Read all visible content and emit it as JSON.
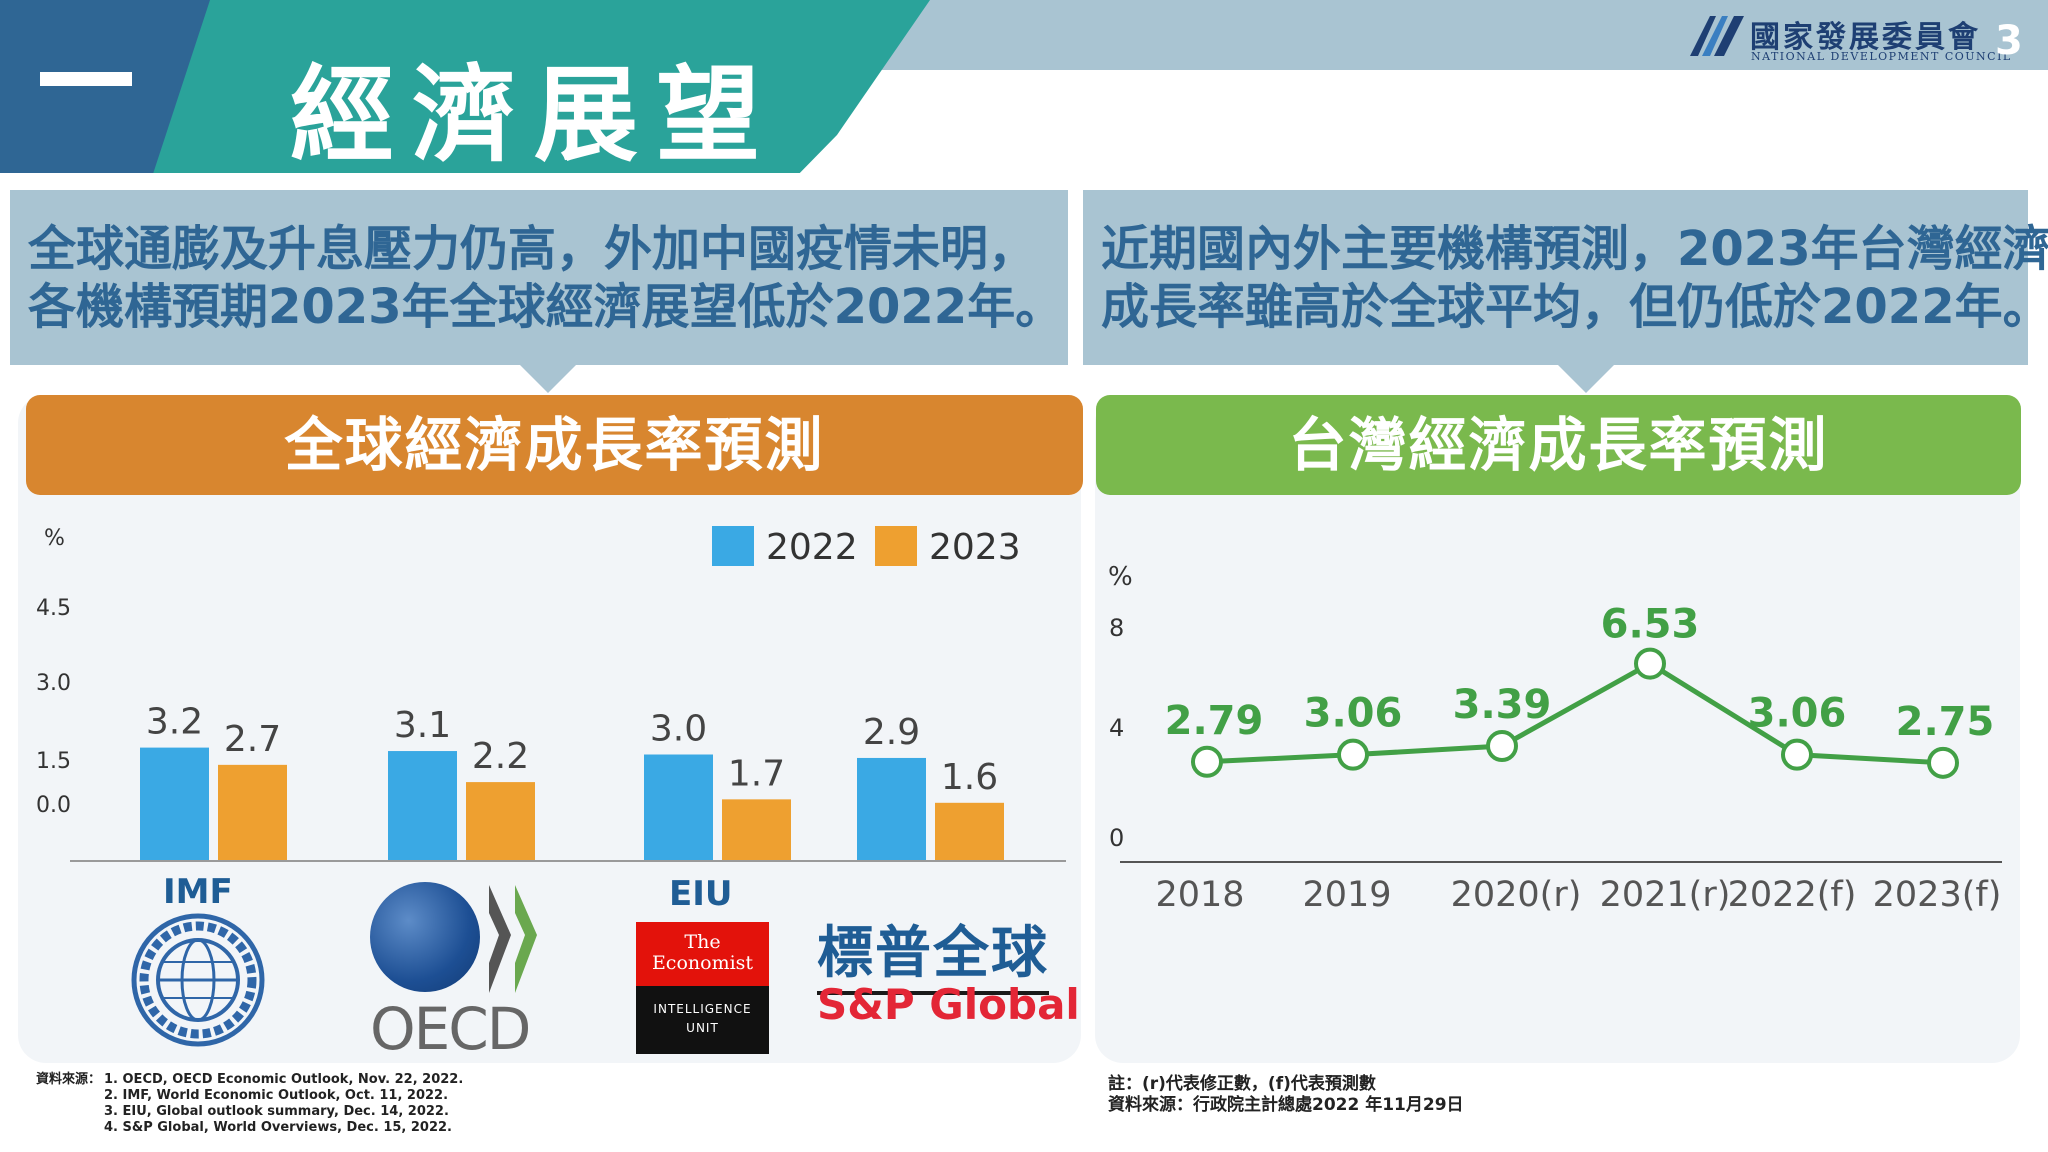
{
  "header": {
    "section_number": "一",
    "title": "經濟展望",
    "org_name_cn": "國家發展委員會",
    "org_name_en": "NATIONAL DEVELOPMENT COUNCIL",
    "page_number": "3"
  },
  "summary_left": {
    "line1": "全球通膨及升息壓力仍高，外加中國疫情未明，",
    "line2": "各機構預期2023年全球經濟展望低於2022年。"
  },
  "summary_right": {
    "line1": "近期國內外主要機構預測，2023年台灣經濟",
    "line2": "成長率雖高於全球平均，但仍低於2022年。"
  },
  "panels": {
    "left_title": "全球經濟成長率預測",
    "right_title": "台灣經濟成長率預測"
  },
  "logos": {
    "imf_label": "IMF",
    "eiu_label": "EIU",
    "oecd_text": "OECD",
    "economist_line1": "The",
    "economist_line2": "Economist",
    "eiu_line1": "INTELLIGENCE",
    "eiu_line2": "UNIT",
    "sp_cn": "標普全球",
    "sp_en": "S&P Global"
  },
  "chart_data": [
    {
      "type": "bar",
      "ylabel": "%",
      "ylim": [
        0,
        4.5
      ],
      "yticks": [
        "4.5",
        "3.0",
        "1.5",
        "0.0"
      ],
      "categories": [
        "IMF",
        "OECD",
        "EIU",
        "S&P Global"
      ],
      "legend_position": "top-right",
      "series": [
        {
          "name": "2022",
          "color": "#3aa9e4",
          "values": [
            3.2,
            3.1,
            3.0,
            2.9
          ],
          "labels": [
            "3.2",
            "3.1",
            "3.0",
            "2.9"
          ]
        },
        {
          "name": "2023",
          "color": "#eea030",
          "values": [
            2.7,
            2.2,
            1.7,
            1.6
          ],
          "labels": [
            "2.7",
            "2.2",
            "1.7",
            "1.6"
          ]
        }
      ]
    },
    {
      "type": "line",
      "ylabel": "%",
      "ylim": [
        0,
        8
      ],
      "yticks": [
        "8",
        "4",
        "0"
      ],
      "x": [
        "2018",
        "2019",
        "2020(r)",
        "2021(r)",
        "2022(f)",
        "2023(f)"
      ],
      "series": [
        {
          "color": "#42a046",
          "values": [
            2.79,
            3.06,
            3.39,
            6.53,
            3.06,
            2.75
          ],
          "labels": [
            "2.79",
            "3.06",
            "3.39",
            "6.53",
            "3.06",
            "2.75"
          ]
        }
      ]
    }
  ],
  "notes_left": {
    "label": "資料來源：",
    "items": [
      "1. OECD, OECD Economic Outlook, Nov. 22, 2022.",
      "2. IMF, World Economic Outlook, Oct. 11, 2022.",
      "3. EIU, Global outlook summary, Dec. 14, 2022.",
      "4. S&P Global, World Overviews, Dec. 15, 2022."
    ]
  },
  "notes_right": {
    "line1": "註：(r)代表修正數，(f)代表預測數",
    "line2": "資料來源：行政院主計總處2022 年11月29日"
  }
}
